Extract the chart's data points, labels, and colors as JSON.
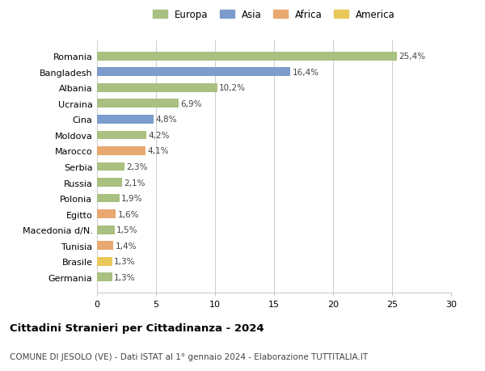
{
  "categories": [
    "Romania",
    "Bangladesh",
    "Albania",
    "Ucraina",
    "Cina",
    "Moldova",
    "Marocco",
    "Serbia",
    "Russia",
    "Polonia",
    "Egitto",
    "Macedonia d/N.",
    "Tunisia",
    "Brasile",
    "Germania"
  ],
  "values": [
    25.4,
    16.4,
    10.2,
    6.9,
    4.8,
    4.2,
    4.1,
    2.3,
    2.1,
    1.9,
    1.6,
    1.5,
    1.4,
    1.3,
    1.3
  ],
  "labels": [
    "25,4%",
    "16,4%",
    "10,2%",
    "6,9%",
    "4,8%",
    "4,2%",
    "4,1%",
    "2,3%",
    "2,1%",
    "1,9%",
    "1,6%",
    "1,5%",
    "1,4%",
    "1,3%",
    "1,3%"
  ],
  "colors": [
    "#a8c080",
    "#7b9ccc",
    "#a8c080",
    "#a8c080",
    "#7b9ccc",
    "#a8c080",
    "#e8a870",
    "#a8c080",
    "#a8c080",
    "#a8c080",
    "#e8a870",
    "#a8c080",
    "#e8a870",
    "#e8c858",
    "#a8c080"
  ],
  "legend_labels": [
    "Europa",
    "Asia",
    "Africa",
    "America"
  ],
  "legend_colors": [
    "#a8c080",
    "#7b9ccc",
    "#e8a870",
    "#e8c858"
  ],
  "title": "Cittadini Stranieri per Cittadinanza - 2024",
  "subtitle": "COMUNE DI JESOLO (VE) - Dati ISTAT al 1° gennaio 2024 - Elaborazione TUTTITALIA.IT",
  "xlim": [
    0,
    30
  ],
  "xticks": [
    0,
    5,
    10,
    15,
    20,
    25,
    30
  ],
  "background_color": "#ffffff",
  "grid_color": "#cccccc",
  "bar_height": 0.55
}
